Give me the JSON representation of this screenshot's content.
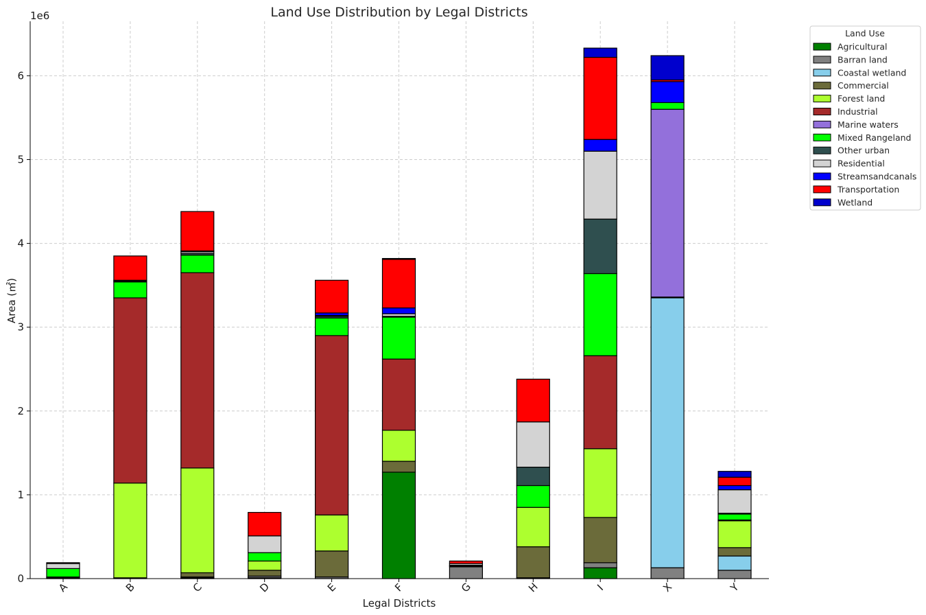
{
  "chart_data": {
    "type": "bar",
    "stacked": true,
    "title": "Land Use Distribution by Legal Districts",
    "xlabel": "Legal Districts",
    "ylabel": "Area (㎡)",
    "y_offset_label": "1e6",
    "ylim": [
      0,
      6650000
    ],
    "yticks": [
      "0",
      "1",
      "2",
      "3",
      "4",
      "5",
      "6"
    ],
    "ytick_values": [
      0,
      1000000,
      2000000,
      3000000,
      4000000,
      5000000,
      6000000
    ],
    "grid": true,
    "legend_position": "outside-top-right",
    "legend_title": "Land Use",
    "categories": [
      "A",
      "B",
      "C",
      "D",
      "E",
      "F",
      "G",
      "H",
      "I",
      "X",
      "Y"
    ],
    "series": [
      {
        "name": "Agricultural",
        "color": "#008000",
        "values": [
          10000,
          0,
          10000,
          10000,
          0,
          1270000,
          0,
          10000,
          130000,
          0,
          0
        ]
      },
      {
        "name": "Barran land",
        "color": "#808080",
        "values": [
          0,
          0,
          10000,
          20000,
          20000,
          0,
          140000,
          0,
          60000,
          130000,
          100000
        ]
      },
      {
        "name": "Coastal wetland",
        "color": "#87CEEB",
        "values": [
          0,
          0,
          0,
          0,
          0,
          0,
          0,
          0,
          0,
          3220000,
          170000
        ]
      },
      {
        "name": "Commercial",
        "color": "#6B6B3A",
        "values": [
          0,
          10000,
          50000,
          70000,
          310000,
          130000,
          10000,
          370000,
          540000,
          0,
          100000
        ]
      },
      {
        "name": "Forest land",
        "color": "#ADFF2F",
        "values": [
          0,
          1130000,
          1250000,
          110000,
          430000,
          370000,
          0,
          470000,
          820000,
          0,
          320000
        ]
      },
      {
        "name": "Industrial",
        "color": "#A52A2A",
        "values": [
          10000,
          2210000,
          2330000,
          0,
          2140000,
          850000,
          0,
          0,
          1110000,
          10000,
          10000
        ]
      },
      {
        "name": "Marine waters",
        "color": "#9370DB",
        "values": [
          0,
          0,
          0,
          0,
          0,
          0,
          0,
          0,
          0,
          2240000,
          0
        ]
      },
      {
        "name": "Mixed Rangeland",
        "color": "#00FF00",
        "values": [
          100000,
          190000,
          210000,
          100000,
          210000,
          500000,
          0,
          260000,
          980000,
          80000,
          70000
        ]
      },
      {
        "name": "Other urban",
        "color": "#2F4F4F",
        "values": [
          0,
          10000,
          20000,
          0,
          20000,
          10000,
          10000,
          220000,
          650000,
          0,
          10000
        ]
      },
      {
        "name": "Residential",
        "color": "#D3D3D3",
        "values": [
          60000,
          0,
          20000,
          200000,
          10000,
          30000,
          20000,
          540000,
          810000,
          0,
          280000
        ]
      },
      {
        "name": "Streamsandcanals",
        "color": "#0000FF",
        "values": [
          0,
          10000,
          10000,
          0,
          30000,
          70000,
          0,
          0,
          140000,
          250000,
          50000
        ]
      },
      {
        "name": "Transportation",
        "color": "#FF0000",
        "values": [
          10000,
          290000,
          470000,
          280000,
          390000,
          580000,
          30000,
          510000,
          980000,
          20000,
          100000
        ]
      },
      {
        "name": "Wetland",
        "color": "#0000CD",
        "values": [
          0,
          0,
          0,
          0,
          0,
          10000,
          0,
          0,
          110000,
          290000,
          70000
        ]
      }
    ]
  }
}
